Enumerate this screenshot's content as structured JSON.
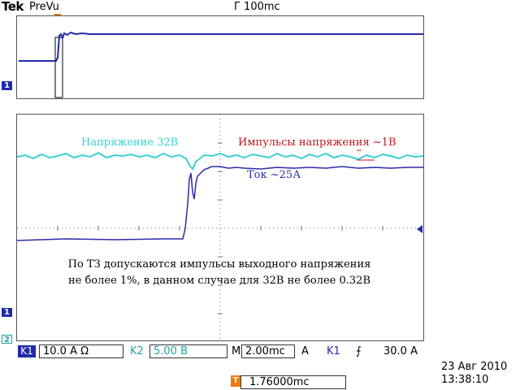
{
  "header": {
    "logo": "Tek",
    "mode": "PreVu",
    "timebase": "Г 100mc"
  },
  "markers": {
    "ch1": "1",
    "ch2": "2",
    "trigger": "T"
  },
  "annotations": {
    "voltage": "Напряжение 32В",
    "pulses": "Импульсы напряжения ~1В",
    "current": "Ток ~25А",
    "note_line1": "По ТЗ допускаются импульсы выходного напряжения",
    "note_line2": "не более 1%, в данном случае для 32В не более 0.32В"
  },
  "status_bar": {
    "ch1_label": "K1",
    "ch1_scale": "10.0 А Ω",
    "ch2_label": "K2",
    "ch2_scale": "5.00 В",
    "timebase_prefix": "M",
    "timebase_value": "2.00mc",
    "trigger_mode": "A",
    "trigger_source": "K1",
    "trigger_slope": "⨍",
    "trigger_level": "30.0 А"
  },
  "footer": {
    "trigger_position": "1.76000mc",
    "date": "23 Авг 2010",
    "time": "13:38:10"
  },
  "colors": {
    "ch1": "#1f2aa8",
    "ch2": "#3ad0d0",
    "trigger": "#f07a12",
    "annotation_red": "#c0151a"
  }
}
